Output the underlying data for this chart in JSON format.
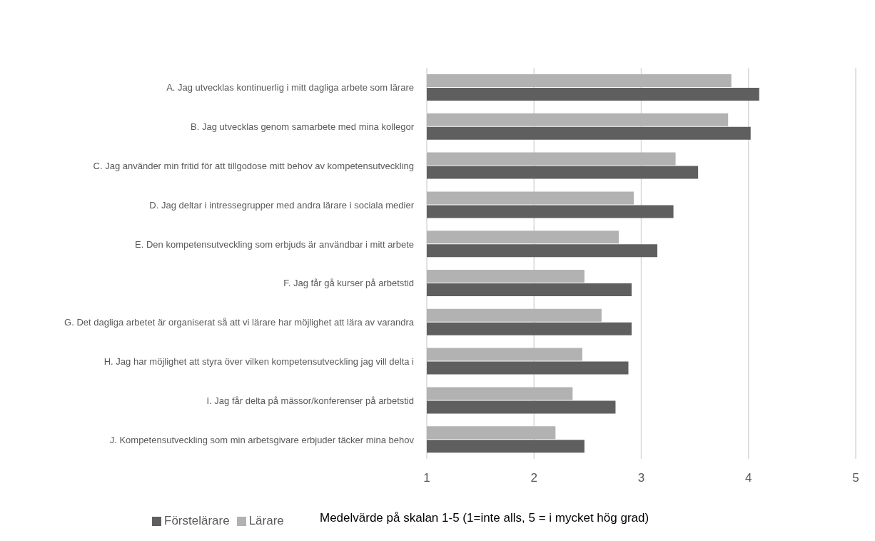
{
  "chart_data": {
    "type": "bar",
    "orientation": "horizontal",
    "xlabel": "Medelvärde på skalan 1-5 (1=inte alls, 5 = i mycket hög grad)",
    "categories": [
      "A. Jag utvecklas kontinuerlig i mitt dagliga arbete som lärare",
      "B. Jag utvecklas genom samarbete med mina kollegor",
      "C. Jag använder min fritid för att tillgodose mitt behov av kompetensutveckling",
      "D. Jag deltar i intressegrupper med andra lärare i sociala medier",
      "E. Den kompetensutveckling som erbjuds är användbar i mitt arbete",
      "F. Jag får gå kurser på arbetstid",
      "G. Det dagliga arbetet är organiserat så att vi lärare har möjlighet att lära av varandra",
      "H. Jag har möjlighet att styra över vilken kompetensutveckling jag vill delta i",
      "I. Jag får delta på mässor/konferenser på arbetstid",
      "J. Kompetensutveckling som min arbetsgivare erbjuder täcker mina behov"
    ],
    "series": [
      {
        "name": "Lärare",
        "color": "#b2b2b2",
        "values": [
          3.84,
          3.81,
          3.32,
          2.93,
          2.79,
          2.47,
          2.63,
          2.45,
          2.36,
          2.2
        ]
      },
      {
        "name": "Förstelärare",
        "color": "#5f5f5f",
        "values": [
          4.1,
          4.02,
          3.53,
          3.3,
          3.15,
          2.91,
          2.91,
          2.88,
          2.76,
          2.47
        ]
      }
    ],
    "xlim": [
      1,
      5
    ],
    "xticks": [
      1,
      2,
      3,
      4,
      5
    ],
    "grid": "x",
    "legend": "bottom left"
  }
}
